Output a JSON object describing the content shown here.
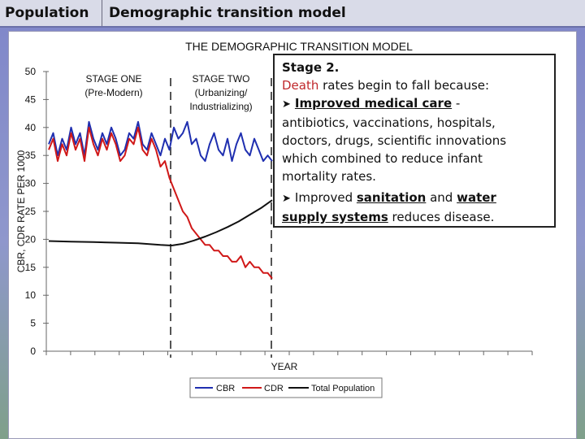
{
  "header": {
    "section": "Population",
    "title": "Demographic transition model"
  },
  "chart_data": {
    "type": "line",
    "title": "THE DEMOGRAPHIC TRANSITION MODEL",
    "xlabel": "YEAR",
    "ylabel": "CBR, CDR RATE PER 1000",
    "ylim": [
      0,
      50
    ],
    "yticks": [
      "0",
      "5",
      "10",
      "15",
      "20",
      "25",
      "30",
      "35",
      "40",
      "45",
      "50"
    ],
    "stages": [
      {
        "name": "STAGE ONE",
        "sub": "(Pre-Modern)"
      },
      {
        "name": "STAGE TWO",
        "sub1": "(Urbanizing/",
        "sub2": "Industrializing)"
      }
    ],
    "legend": [
      "CBR",
      "CDR",
      "Total Population"
    ],
    "colors": {
      "cbr": "#1f2fb0",
      "cdr": "#d01818",
      "pop": "#111111"
    },
    "series": [
      {
        "name": "CBR",
        "x": [
          0,
          2,
          4,
          6,
          8,
          10,
          12,
          14,
          16,
          18,
          20,
          22,
          24,
          26,
          28,
          30,
          32,
          34,
          36,
          38,
          40,
          42,
          44,
          46,
          48,
          50,
          52,
          54,
          56,
          58,
          60,
          62,
          64,
          66,
          68,
          70,
          72,
          74,
          76,
          78,
          80,
          82,
          84,
          86,
          88,
          90,
          92,
          94,
          96,
          98,
          100
        ],
        "values": [
          37,
          39,
          35,
          38,
          36,
          40,
          37,
          39,
          35,
          41,
          38,
          36,
          39,
          37,
          40,
          38,
          35,
          36,
          39,
          38,
          41,
          37,
          36,
          39,
          37,
          35,
          38,
          36,
          40,
          38,
          39,
          41,
          37,
          38,
          35,
          34,
          37,
          39,
          36,
          35,
          38,
          34,
          37,
          39,
          36,
          35,
          38,
          36,
          34,
          35,
          34
        ]
      },
      {
        "name": "CDR",
        "x": [
          0,
          2,
          4,
          6,
          8,
          10,
          12,
          14,
          16,
          18,
          20,
          22,
          24,
          26,
          28,
          30,
          32,
          34,
          36,
          38,
          40,
          42,
          44,
          46,
          48,
          50,
          52,
          54,
          56,
          58,
          60,
          62,
          64,
          66,
          68,
          70,
          72,
          74,
          76,
          78,
          80,
          82,
          84,
          86,
          88,
          90,
          92,
          94,
          96,
          98,
          100
        ],
        "values": [
          36,
          38,
          34,
          37,
          35,
          39,
          36,
          38,
          34,
          40,
          37,
          35,
          38,
          36,
          39,
          37,
          34,
          35,
          38,
          37,
          40,
          36,
          35,
          38,
          36,
          33,
          34,
          31,
          29,
          27,
          25,
          24,
          22,
          21,
          20,
          19,
          19,
          18,
          18,
          17,
          17,
          16,
          16,
          17,
          15,
          16,
          15,
          15,
          14,
          14,
          13
        ]
      },
      {
        "name": "Total Population",
        "x": [
          0,
          10,
          20,
          30,
          40,
          50,
          55,
          60,
          65,
          70,
          75,
          80,
          85,
          90,
          95,
          100
        ],
        "values": [
          19.7,
          19.6,
          19.5,
          19.4,
          19.3,
          19.0,
          18.9,
          19.2,
          19.8,
          20.5,
          21.3,
          22.2,
          23.2,
          24.4,
          25.6,
          27.0
        ]
      }
    ]
  },
  "overlay": {
    "heading": "Stage 2.",
    "death": "Death",
    "intro": " rates begin to fall because:",
    "bullet1_title": "Improved medical care",
    "bullet1_dash": " -",
    "line3": "antibiotics, vaccinations, hospitals,",
    "line4": "doctors, drugs, scientific innovations",
    "line5": "which combined to reduce infant",
    "line6": "mortality rates.",
    "bullet2_pre": "Improved ",
    "sanitation": "sanitation",
    "and": " and ",
    "water": "water",
    "supply": "supply systems",
    "bullet2_post": " reduces disease."
  }
}
